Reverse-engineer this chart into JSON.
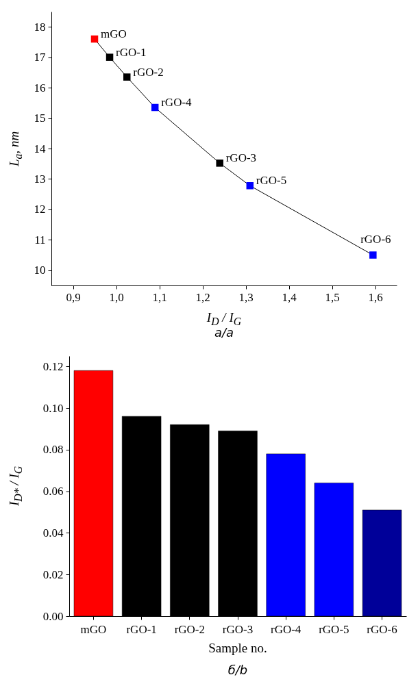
{
  "chart_data": [
    {
      "type": "line",
      "xlabel": "I$_{D}$ / I$_{G}$",
      "ylabel": "L$_{a}$, nm",
      "x": [
        0.95,
        0.985,
        1.025,
        1.09,
        1.24,
        1.31,
        1.595
      ],
      "values": [
        17.6,
        17.0,
        16.35,
        15.35,
        13.52,
        12.78,
        10.5
      ],
      "color": "#000000",
      "colors": [
        "#ff0000",
        "#000000",
        "#000000",
        "#0000ff",
        "#000000",
        "#0000ff",
        "#0000ff"
      ],
      "marker": "square",
      "xlim": [
        0.85,
        1.65
      ],
      "ylim": [
        9.5,
        18.5
      ],
      "xticks": [
        {
          "value": 0.9,
          "label": "0,9"
        },
        {
          "value": 1.0,
          "label": "1,0"
        },
        {
          "value": 1.1,
          "label": "1,1"
        },
        {
          "value": 1.2,
          "label": "1,2"
        },
        {
          "value": 1.3,
          "label": "1,3"
        },
        {
          "value": 1.4,
          "label": "1,4"
        },
        {
          "value": 1.5,
          "label": "1,5"
        },
        {
          "value": 1.6,
          "label": "1,6"
        }
      ],
      "yticks": [
        10,
        11,
        12,
        13,
        14,
        15,
        16,
        17,
        18
      ],
      "annotations": [
        {
          "text": "mGO",
          "x": 0.95,
          "y": 17.6
        },
        {
          "text": "rGO-1",
          "x": 0.985,
          "y": 17.0
        },
        {
          "text": "rGO-2",
          "x": 1.025,
          "y": 16.35
        },
        {
          "text": "rGO-4",
          "x": 1.09,
          "y": 15.35
        },
        {
          "text": "rGO-3",
          "x": 1.24,
          "y": 13.52
        },
        {
          "text": "rGO-5",
          "x": 1.31,
          "y": 12.78
        },
        {
          "text": "rGO-6",
          "x": 1.595,
          "y": 10.5
        },
        "а/a"
      ]
    },
    {
      "type": "bar",
      "xlabel": "Sample no.",
      "ylabel": "I$_{D*}$ / I$_{G}$",
      "categories": [
        "mGO",
        "rGO-1",
        "rGO-2",
        "rGO-3",
        "rGO-4",
        "rGO-5",
        "rGO-6"
      ],
      "values": [
        0.118,
        0.096,
        0.092,
        0.089,
        0.078,
        0.064,
        0.051
      ],
      "colors": [
        "#ff0000",
        "#000000",
        "#000000",
        "#000000",
        "#0000ff",
        "#0000ff",
        "#000099"
      ],
      "ylim": [
        0,
        0.125
      ],
      "yticks": [
        {
          "value": 0,
          "label": "0.00"
        },
        {
          "value": 0.02,
          "label": "0.02"
        },
        {
          "value": 0.04,
          "label": "0.04"
        },
        {
          "value": 0.06,
          "label": "0.06"
        },
        {
          "value": 0.08,
          "label": "0.08"
        },
        {
          "value": 0.1,
          "label": "0.10"
        },
        {
          "value": 0.12,
          "label": "0.12"
        }
      ],
      "annotations": [
        "б/b"
      ]
    }
  ]
}
